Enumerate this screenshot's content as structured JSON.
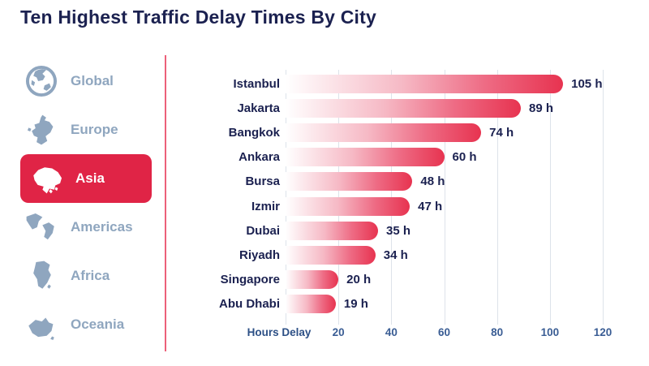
{
  "header": {
    "title": "Ten Highest Traffic Delay Times By City",
    "title_color": "#1b2150"
  },
  "sidebar": {
    "items": [
      {
        "label": "Global",
        "icon": "globe-icon",
        "active": false
      },
      {
        "label": "Europe",
        "icon": "europe-map-icon",
        "active": false
      },
      {
        "label": "Asia",
        "icon": "asia-map-icon",
        "active": true
      },
      {
        "label": "Americas",
        "icon": "americas-map-icon",
        "active": false
      },
      {
        "label": "Africa",
        "icon": "africa-map-icon",
        "active": false
      },
      {
        "label": "Oceania",
        "icon": "oceania-map-icon",
        "active": false
      }
    ],
    "inactive_color": "#8fa6bf",
    "active_bg": "#e02446",
    "active_text": "#ffffff",
    "divider_color": "#ec6079"
  },
  "chart_data": {
    "type": "bar",
    "orientation": "horizontal",
    "title": "Ten Highest Traffic Delay Times By City",
    "categories": [
      "Istanbul",
      "Jakarta",
      "Bangkok",
      "Ankara",
      "Bursa",
      "Izmir",
      "Dubai",
      "Riyadh",
      "Singapore",
      "Abu Dhabi"
    ],
    "values": [
      105,
      89,
      74,
      60,
      48,
      47,
      35,
      34,
      20,
      19
    ],
    "value_suffix": " h",
    "xlabel": "Hours Delay",
    "x_ticks": [
      20,
      40,
      60,
      80,
      100,
      120
    ],
    "xlim": [
      0,
      120
    ],
    "grid": true,
    "legend": "none",
    "bar_gradient": [
      "#ffffff",
      "#e73350"
    ],
    "category_label_color": "#1b2150",
    "value_label_color": "#1b2150",
    "axis_label_color": "#2d5086",
    "gridline_color": "#dde3ea"
  }
}
